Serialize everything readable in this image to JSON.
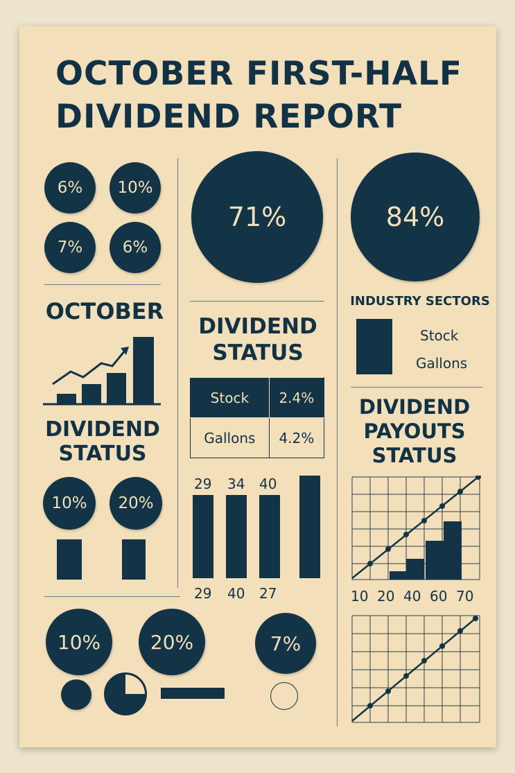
{
  "title": {
    "line1": "OCTOBER FIRST-HALF",
    "line2": "DIVIDEND REPORT"
  },
  "small_circles": [
    "6%",
    "10%",
    "7%",
    "6%"
  ],
  "big_circles": [
    "71%",
    "84%"
  ],
  "october_label": "OCTOBER",
  "left_dividend_status": {
    "line1": "DIVIDEND",
    "line2": "STATUS"
  },
  "left_pct_circles": [
    "10%",
    "20%"
  ],
  "center_dividend_status": {
    "line1": "DIVIDEND",
    "line2": "STATUS"
  },
  "status_table": [
    {
      "name": "Stock",
      "value": "2.4%"
    },
    {
      "name": "Gallons",
      "value": "4.2%"
    }
  ],
  "center_bars": {
    "top_labels": [
      "29",
      "34",
      "40"
    ],
    "bottom_labels": [
      "29",
      "40",
      "27"
    ]
  },
  "industry_sectors": {
    "title": "INDUSTRY SECTORS",
    "items": [
      "Stock",
      "Gallons"
    ]
  },
  "payouts": {
    "line1": "DIVIDEND",
    "line2": "PAYOUTS",
    "line3": "STATUS"
  },
  "payout_axis_labels": [
    "10",
    "20",
    "40",
    "60",
    "70"
  ],
  "bottom_circles": [
    "10%",
    "20%",
    "7%"
  ],
  "colors": {
    "navy": "#123446",
    "paper": "#f3dfba",
    "background": "#ede4cc"
  }
}
